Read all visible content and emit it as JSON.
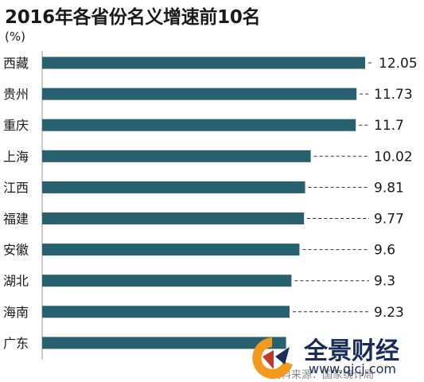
{
  "chart_data": {
    "type": "bar",
    "orientation": "horizontal",
    "title": "2016年各省份名义增速前10名",
    "unit": "(%)",
    "categories": [
      "西藏",
      "贵州",
      "重庆",
      "上海",
      "江西",
      "福建",
      "安徽",
      "湖北",
      "海南",
      "广东"
    ],
    "values": [
      12.05,
      11.73,
      11.7,
      10.02,
      9.81,
      9.77,
      9.6,
      9.3,
      9.23,
      null
    ],
    "value_labels": [
      "12.05",
      "11.73",
      "11.7",
      "10.02",
      "9.81",
      "9.77",
      "9.6",
      "9.3",
      "9.23",
      ""
    ],
    "bar_color": "#27616f",
    "grid": false,
    "legend": "none"
  },
  "watermark": {
    "brand": "全景财经",
    "url": "www.qjcj.com",
    "brand_color": "#1a2d5a",
    "logo_colors": [
      "#f39a1e",
      "#c0392b"
    ]
  },
  "source_note": "资料来源：国家统计局"
}
